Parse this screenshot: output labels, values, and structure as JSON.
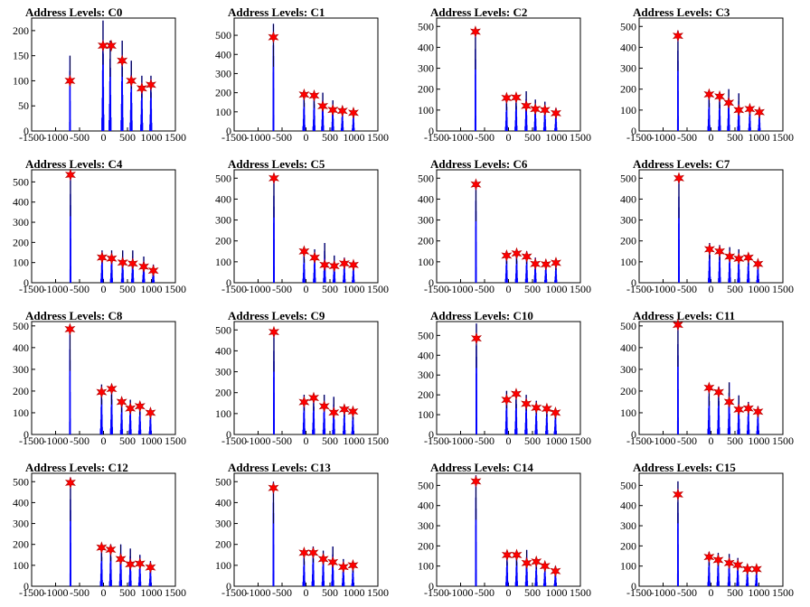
{
  "colors": {
    "background": "#ffffff",
    "bar": "#0000ff",
    "outline": "#000000",
    "marker": "#ff0000"
  },
  "chart_data": [
    {
      "type": "bar",
      "title": "Address Levels: C0",
      "xlim": [
        -1500,
        1500
      ],
      "ylim": [
        0,
        225
      ],
      "xticks": [
        -1500,
        -1000,
        -500,
        0,
        500,
        1000,
        1500
      ],
      "yticks": [
        0,
        50,
        100,
        150,
        200
      ],
      "peaks": [
        [
          -700,
          150
        ],
        [
          -10,
          220
        ],
        [
          140,
          180
        ],
        [
          390,
          180
        ],
        [
          580,
          140
        ],
        [
          800,
          110
        ],
        [
          990,
          110
        ]
      ],
      "markers": [
        [
          -700,
          100
        ],
        [
          -10,
          170
        ],
        [
          160,
          170
        ],
        [
          390,
          140
        ],
        [
          580,
          100
        ],
        [
          800,
          85
        ],
        [
          990,
          92
        ]
      ]
    },
    {
      "type": "bar",
      "title": "Address Levels: C1",
      "xlim": [
        -1500,
        1500
      ],
      "ylim": [
        0,
        590
      ],
      "xticks": [
        -1500,
        -1000,
        -500,
        0,
        500,
        1000,
        1500
      ],
      "yticks": [
        0,
        100,
        200,
        300,
        400,
        500
      ],
      "peaks": [
        [
          -680,
          560
        ],
        [
          -40,
          210
        ],
        [
          170,
          200
        ],
        [
          350,
          200
        ],
        [
          560,
          160
        ],
        [
          760,
          130
        ],
        [
          990,
          110
        ]
      ],
      "markers": [
        [
          -680,
          490
        ],
        [
          -40,
          190
        ],
        [
          170,
          185
        ],
        [
          350,
          130
        ],
        [
          560,
          110
        ],
        [
          760,
          105
        ],
        [
          990,
          95
        ]
      ]
    },
    {
      "type": "bar",
      "title": "Address Levels: C2",
      "xlim": [
        -1500,
        1500
      ],
      "ylim": [
        0,
        540
      ],
      "xticks": [
        -1500,
        -1000,
        -500,
        0,
        500,
        1000,
        1500
      ],
      "yticks": [
        0,
        100,
        200,
        300,
        400,
        500
      ],
      "peaks": [
        [
          -690,
          490
        ],
        [
          -40,
          165
        ],
        [
          160,
          170
        ],
        [
          370,
          190
        ],
        [
          560,
          150
        ],
        [
          760,
          140
        ],
        [
          990,
          110
        ]
      ],
      "markers": [
        [
          -690,
          475
        ],
        [
          -40,
          158
        ],
        [
          160,
          160
        ],
        [
          370,
          120
        ],
        [
          560,
          105
        ],
        [
          760,
          100
        ],
        [
          990,
          85
        ]
      ]
    },
    {
      "type": "bar",
      "title": "Address Levels: C3",
      "xlim": [
        -1500,
        1500
      ],
      "ylim": [
        0,
        540
      ],
      "xticks": [
        -1500,
        -1000,
        -500,
        0,
        500,
        1000,
        1500
      ],
      "yticks": [
        0,
        100,
        200,
        300,
        400,
        500
      ],
      "peaks": [
        [
          -690,
          480
        ],
        [
          -40,
          190
        ],
        [
          180,
          180
        ],
        [
          370,
          200
        ],
        [
          580,
          180
        ],
        [
          810,
          120
        ],
        [
          1010,
          100
        ]
      ],
      "markers": [
        [
          -690,
          455
        ],
        [
          -40,
          175
        ],
        [
          180,
          165
        ],
        [
          370,
          135
        ],
        [
          580,
          100
        ],
        [
          810,
          105
        ],
        [
          1010,
          90
        ]
      ]
    },
    {
      "type": "bar",
      "title": "Address Levels: C4",
      "xlim": [
        -1500,
        1500
      ],
      "ylim": [
        0,
        560
      ],
      "xticks": [
        -1500,
        -1000,
        -500,
        0,
        500,
        1000,
        1500
      ],
      "yticks": [
        0,
        100,
        200,
        300,
        400,
        500
      ],
      "peaks": [
        [
          -690,
          550
        ],
        [
          -30,
          160
        ],
        [
          170,
          160
        ],
        [
          400,
          160
        ],
        [
          610,
          160
        ],
        [
          840,
          130
        ],
        [
          1040,
          90
        ]
      ],
      "markers": [
        [
          -690,
          535
        ],
        [
          -30,
          125
        ],
        [
          170,
          120
        ],
        [
          400,
          100
        ],
        [
          610,
          95
        ],
        [
          840,
          80
        ],
        [
          1040,
          60
        ]
      ]
    },
    {
      "type": "bar",
      "title": "Address Levels: C5",
      "xlim": [
        -1500,
        1500
      ],
      "ylim": [
        0,
        540
      ],
      "xticks": [
        -1500,
        -1000,
        -500,
        0,
        500,
        1000,
        1500
      ],
      "yticks": [
        0,
        100,
        200,
        300,
        400,
        500
      ],
      "peaks": [
        [
          -670,
          520
        ],
        [
          -40,
          160
        ],
        [
          180,
          160
        ],
        [
          390,
          190
        ],
        [
          590,
          130
        ],
        [
          800,
          120
        ],
        [
          990,
          100
        ]
      ],
      "markers": [
        [
          -670,
          500
        ],
        [
          -40,
          150
        ],
        [
          180,
          120
        ],
        [
          390,
          85
        ],
        [
          590,
          80
        ],
        [
          800,
          92
        ],
        [
          990,
          85
        ]
      ]
    },
    {
      "type": "bar",
      "title": "Address Levels: C6",
      "xlim": [
        -1500,
        1500
      ],
      "ylim": [
        0,
        540
      ],
      "xticks": [
        -1500,
        -1000,
        -500,
        0,
        500,
        1000,
        1500
      ],
      "yticks": [
        0,
        100,
        200,
        300,
        400,
        500
      ],
      "peaks": [
        [
          -680,
          490
        ],
        [
          -40,
          150
        ],
        [
          170,
          150
        ],
        [
          380,
          150
        ],
        [
          560,
          120
        ],
        [
          780,
          110
        ],
        [
          990,
          100
        ]
      ],
      "markers": [
        [
          -680,
          470
        ],
        [
          -40,
          130
        ],
        [
          170,
          140
        ],
        [
          380,
          125
        ],
        [
          560,
          90
        ],
        [
          780,
          88
        ],
        [
          990,
          95
        ]
      ]
    },
    {
      "type": "bar",
      "title": "Address Levels: C7",
      "xlim": [
        -1500,
        1500
      ],
      "ylim": [
        0,
        540
      ],
      "xticks": [
        -1500,
        -1000,
        -500,
        0,
        500,
        1000,
        1500
      ],
      "yticks": [
        0,
        100,
        200,
        300,
        400,
        500
      ],
      "peaks": [
        [
          -670,
          515
        ],
        [
          -30,
          190
        ],
        [
          180,
          180
        ],
        [
          390,
          170
        ],
        [
          580,
          160
        ],
        [
          780,
          140
        ],
        [
          980,
          110
        ]
      ],
      "markers": [
        [
          -670,
          500
        ],
        [
          -30,
          160
        ],
        [
          180,
          150
        ],
        [
          390,
          125
        ],
        [
          580,
          115
        ],
        [
          780,
          120
        ],
        [
          980,
          90
        ]
      ]
    },
    {
      "type": "bar",
      "title": "Address Levels: C8",
      "xlim": [
        -1500,
        1500
      ],
      "ylim": [
        0,
        520
      ],
      "xticks": [
        -1500,
        -1000,
        -500,
        0,
        500,
        1000,
        1500
      ],
      "yticks": [
        0,
        100,
        200,
        300,
        400,
        500
      ],
      "peaks": [
        [
          -700,
          490
        ],
        [
          -40,
          230
        ],
        [
          170,
          230
        ],
        [
          380,
          170
        ],
        [
          560,
          160
        ],
        [
          760,
          150
        ],
        [
          980,
          120
        ]
      ],
      "markers": [
        [
          -700,
          485
        ],
        [
          -40,
          195
        ],
        [
          170,
          210
        ],
        [
          380,
          150
        ],
        [
          560,
          120
        ],
        [
          760,
          130
        ],
        [
          980,
          100
        ]
      ]
    },
    {
      "type": "bar",
      "title": "Address Levels: C9",
      "xlim": [
        -1500,
        1500
      ],
      "ylim": [
        0,
        540
      ],
      "xticks": [
        -1500,
        -1000,
        -500,
        0,
        500,
        1000,
        1500
      ],
      "yticks": [
        0,
        100,
        200,
        300,
        400,
        500
      ],
      "peaks": [
        [
          -670,
          500
        ],
        [
          -40,
          190
        ],
        [
          160,
          190
        ],
        [
          380,
          190
        ],
        [
          580,
          180
        ],
        [
          800,
          140
        ],
        [
          980,
          120
        ]
      ],
      "markers": [
        [
          -670,
          490
        ],
        [
          -40,
          155
        ],
        [
          160,
          175
        ],
        [
          380,
          135
        ],
        [
          580,
          105
        ],
        [
          800,
          120
        ],
        [
          980,
          110
        ]
      ]
    },
    {
      "type": "bar",
      "title": "Address Levels: C10",
      "xlim": [
        -1500,
        1500
      ],
      "ylim": [
        0,
        570
      ],
      "xticks": [
        -1500,
        -1000,
        -500,
        0,
        500,
        1000,
        1500
      ],
      "yticks": [
        0,
        100,
        200,
        300,
        400,
        500
      ],
      "peaks": [
        [
          -670,
          560
        ],
        [
          -40,
          220
        ],
        [
          160,
          220
        ],
        [
          370,
          200
        ],
        [
          580,
          170
        ],
        [
          800,
          150
        ],
        [
          980,
          130
        ]
      ],
      "markers": [
        [
          -670,
          485
        ],
        [
          -40,
          175
        ],
        [
          160,
          205
        ],
        [
          370,
          155
        ],
        [
          580,
          135
        ],
        [
          800,
          130
        ],
        [
          980,
          110
        ]
      ]
    },
    {
      "type": "bar",
      "title": "Address Levels: C11",
      "xlim": [
        -1500,
        1500
      ],
      "ylim": [
        0,
        520
      ],
      "xticks": [
        -1500,
        -1000,
        -500,
        0,
        500,
        1000,
        1500
      ],
      "yticks": [
        0,
        100,
        200,
        300,
        400,
        500
      ],
      "peaks": [
        [
          -690,
          520
        ],
        [
          -40,
          220
        ],
        [
          160,
          220
        ],
        [
          380,
          240
        ],
        [
          580,
          180
        ],
        [
          780,
          150
        ],
        [
          980,
          130
        ]
      ],
      "markers": [
        [
          -690,
          505
        ],
        [
          -40,
          215
        ],
        [
          160,
          195
        ],
        [
          380,
          150
        ],
        [
          580,
          115
        ],
        [
          780,
          120
        ],
        [
          980,
          105
        ]
      ]
    },
    {
      "type": "bar",
      "title": "Address Levels: C12",
      "xlim": [
        -1500,
        1500
      ],
      "ylim": [
        0,
        540
      ],
      "xticks": [
        -1500,
        -1000,
        -500,
        0,
        500,
        1000,
        1500
      ],
      "yticks": [
        0,
        100,
        200,
        300,
        400,
        500
      ],
      "peaks": [
        [
          -690,
          520
        ],
        [
          -40,
          200
        ],
        [
          150,
          200
        ],
        [
          360,
          200
        ],
        [
          560,
          180
        ],
        [
          760,
          150
        ],
        [
          980,
          120
        ]
      ],
      "markers": [
        [
          -690,
          495
        ],
        [
          -40,
          185
        ],
        [
          150,
          175
        ],
        [
          360,
          130
        ],
        [
          560,
          105
        ],
        [
          760,
          108
        ],
        [
          980,
          90
        ]
      ]
    },
    {
      "type": "bar",
      "title": "Address Levels: C13",
      "xlim": [
        -1500,
        1500
      ],
      "ylim": [
        0,
        540
      ],
      "xticks": [
        -1500,
        -1000,
        -500,
        0,
        500,
        1000,
        1500
      ],
      "yticks": [
        0,
        100,
        200,
        300,
        400,
        500
      ],
      "peaks": [
        [
          -680,
          500
        ],
        [
          -40,
          170
        ],
        [
          150,
          190
        ],
        [
          360,
          170
        ],
        [
          560,
          190
        ],
        [
          780,
          130
        ],
        [
          980,
          110
        ]
      ],
      "markers": [
        [
          -680,
          470
        ],
        [
          -40,
          160
        ],
        [
          150,
          160
        ],
        [
          360,
          130
        ],
        [
          560,
          115
        ],
        [
          780,
          92
        ],
        [
          980,
          100
        ]
      ]
    },
    {
      "type": "bar",
      "title": "Address Levels: C14",
      "xlim": [
        -1500,
        1500
      ],
      "ylim": [
        0,
        560
      ],
      "xticks": [
        -1500,
        -1000,
        -500,
        0,
        500,
        1000,
        1500
      ],
      "yticks": [
        0,
        100,
        200,
        300,
        400,
        500
      ],
      "peaks": [
        [
          -680,
          550
        ],
        [
          -30,
          170
        ],
        [
          170,
          170
        ],
        [
          380,
          180
        ],
        [
          580,
          140
        ],
        [
          760,
          120
        ],
        [
          980,
          100
        ]
      ],
      "markers": [
        [
          -680,
          520
        ],
        [
          -30,
          155
        ],
        [
          170,
          155
        ],
        [
          380,
          115
        ],
        [
          580,
          122
        ],
        [
          760,
          100
        ],
        [
          980,
          75
        ]
      ]
    },
    {
      "type": "bar",
      "title": "Address Levels: C15",
      "xlim": [
        -1500,
        1500
      ],
      "ylim": [
        0,
        560
      ],
      "xticks": [
        -1500,
        -1000,
        -500,
        0,
        500,
        1000,
        1500
      ],
      "yticks": [
        0,
        100,
        200,
        300,
        400,
        500
      ],
      "peaks": [
        [
          -690,
          520
        ],
        [
          -40,
          170
        ],
        [
          150,
          165
        ],
        [
          380,
          160
        ],
        [
          560,
          140
        ],
        [
          760,
          110
        ],
        [
          950,
          100
        ]
      ],
      "markers": [
        [
          -690,
          455
        ],
        [
          -40,
          145
        ],
        [
          150,
          130
        ],
        [
          380,
          115
        ],
        [
          560,
          105
        ],
        [
          760,
          85
        ],
        [
          950,
          85
        ]
      ]
    }
  ]
}
